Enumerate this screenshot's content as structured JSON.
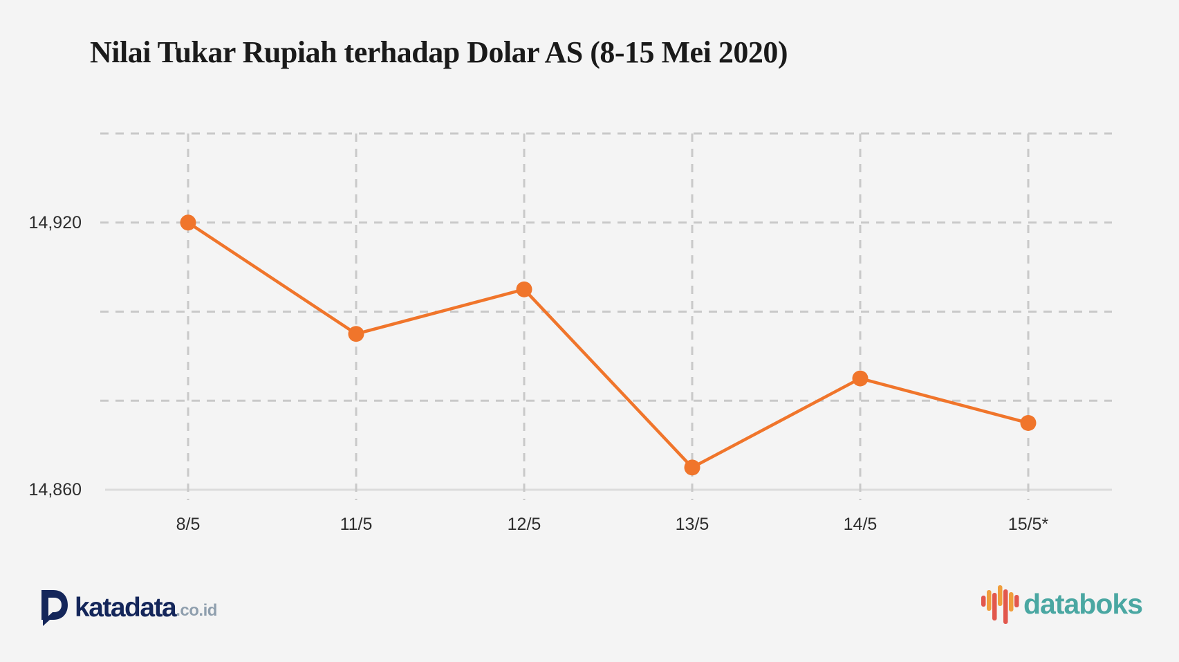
{
  "title": "Nilai Tukar Rupiah terhadap Dolar AS (8-15 Mei 2020)",
  "chart_data": {
    "type": "line",
    "categories": [
      "8/5",
      "11/5",
      "12/5",
      "13/5",
      "14/5",
      "15/5*"
    ],
    "values": [
      14920,
      14895,
      14905,
      14865,
      14885,
      14875
    ],
    "title": "Nilai Tukar Rupiah terhadap Dolar AS (8-15 Mei 2020)",
    "xlabel": "",
    "ylabel": "",
    "ylim": [
      14860,
      14940
    ],
    "grid_step": 20,
    "grid": "dashed",
    "legend": "none",
    "y_tick_labels": [
      {
        "value": 14920,
        "label": "14,920"
      },
      {
        "value": 14860,
        "label": "14,860"
      }
    ],
    "line_color": "#F0752B",
    "marker_color": "#F0752B",
    "grid_color": "#c9c9c9",
    "baseline_color": "#dcdcdc"
  },
  "footer": {
    "katadata": {
      "name": "katadata",
      "tld": ".co.id"
    },
    "databoks": {
      "name": "databoks"
    }
  },
  "colors": {
    "background": "#f4f4f4",
    "title_text": "#1a1a1a",
    "tick_text": "#2e2e2e",
    "katadata_navy": "#14265a",
    "katadata_gray": "#8f9fae",
    "databoks_teal": "#4aa7a2",
    "databoks_red": "#e2574c",
    "databoks_orange": "#f09e3c"
  }
}
